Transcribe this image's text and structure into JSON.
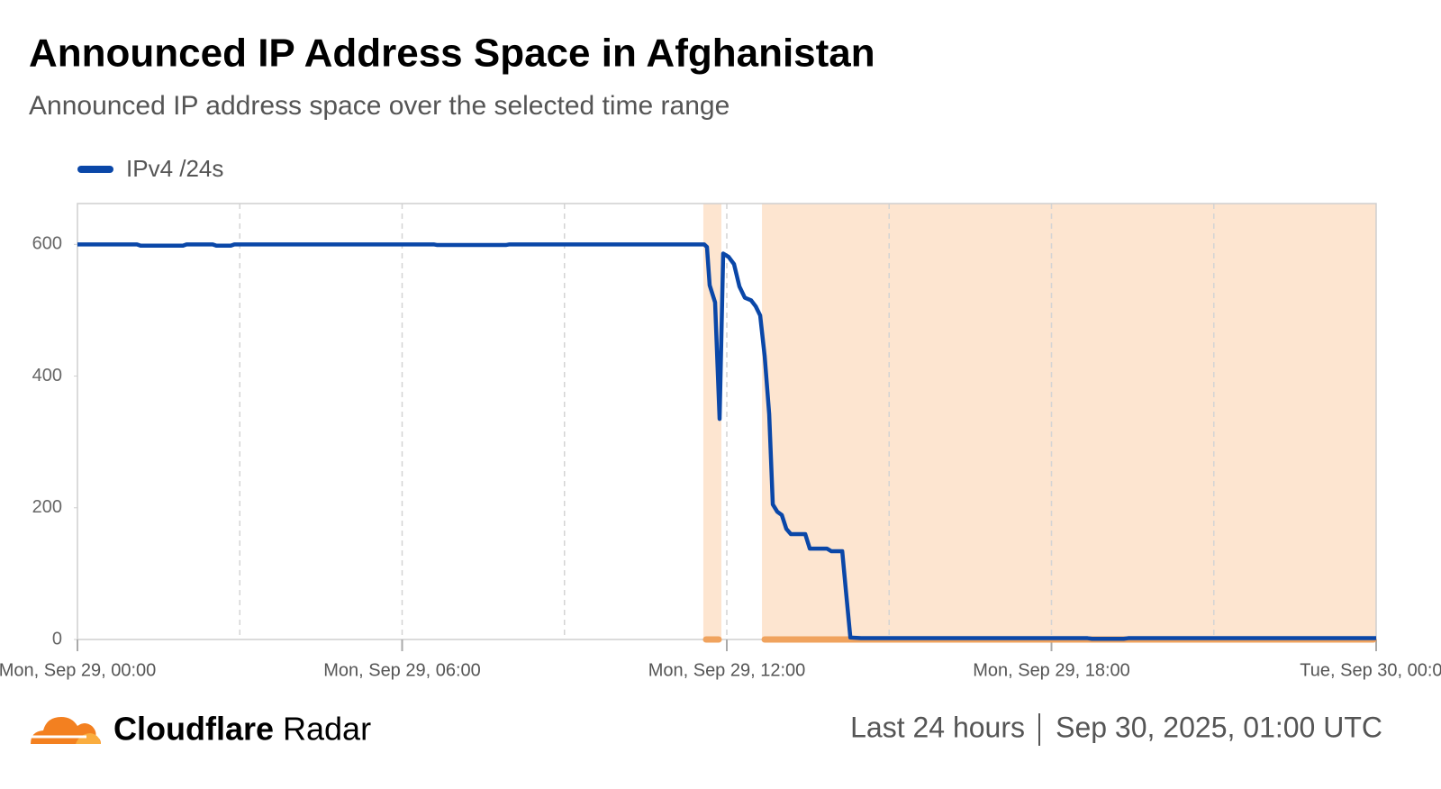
{
  "chart_data": {
    "type": "line",
    "title": "Announced IP Address Space in Afghanistan",
    "subtitle": "Announced IP address space over the selected time range",
    "x": [
      "2025-09-29T00:00",
      "2025-09-29T01:06",
      "2025-09-29T01:10",
      "2025-09-29T01:57",
      "2025-09-29T02:01",
      "2025-09-29T02:30",
      "2025-09-29T02:34",
      "2025-09-29T02:50",
      "2025-09-29T02:54",
      "2025-09-29T06:35",
      "2025-09-29T06:39",
      "2025-09-29T07:55",
      "2025-09-29T07:59",
      "2025-09-29T11:35",
      "2025-09-29T11:38",
      "2025-09-29T11:41",
      "2025-09-29T11:47",
      "2025-09-29T11:52",
      "2025-09-29T11:56",
      "2025-09-29T12:02",
      "2025-09-29T12:08",
      "2025-09-29T12:14",
      "2025-09-29T12:20",
      "2025-09-29T12:27",
      "2025-09-29T12:32",
      "2025-09-29T12:37",
      "2025-09-29T12:42",
      "2025-09-29T12:47",
      "2025-09-29T12:51",
      "2025-09-29T12:56",
      "2025-09-29T13:01",
      "2025-09-29T13:06",
      "2025-09-29T13:11",
      "2025-09-29T13:27",
      "2025-09-29T13:32",
      "2025-09-29T13:51",
      "2025-09-29T13:56",
      "2025-09-29T14:08",
      "2025-09-29T14:12",
      "2025-09-29T14:17",
      "2025-09-29T14:29",
      "2025-09-29T18:40",
      "2025-09-29T18:45",
      "2025-09-29T19:20",
      "2025-09-29T19:25",
      "2025-09-30T00:00"
    ],
    "series": [
      {
        "name": "IPv4 /24s",
        "color": "#0a47a8",
        "values": [
          600,
          600,
          598,
          598,
          600,
          600,
          598,
          598,
          600,
          600,
          599,
          599,
          600,
          600,
          596,
          538,
          512,
          335,
          586,
          581,
          570,
          536,
          519,
          515,
          506,
          492,
          430,
          342,
          205,
          194,
          189,
          168,
          160,
          160,
          138,
          138,
          134,
          134,
          75,
          3,
          2,
          2,
          1,
          1,
          2,
          2
        ]
      }
    ],
    "highlight_ranges": [
      {
        "start": "2025-09-29T11:34",
        "end": "2025-09-29T11:54"
      },
      {
        "start": "2025-09-29T12:39",
        "end": "2025-09-30T00:00"
      }
    ],
    "highlight_color": "#fde5d0",
    "highlight_marker_color": "#f0a35e",
    "xlim": [
      "2025-09-29T00:00",
      "2025-09-30T00:00"
    ],
    "xticks": [
      {
        "value": "2025-09-29T00:00",
        "label": "Mon, Sep 29, 00:00"
      },
      {
        "value": "2025-09-29T06:00",
        "label": "Mon, Sep 29, 06:00"
      },
      {
        "value": "2025-09-29T12:00",
        "label": "Mon, Sep 29, 12:00"
      },
      {
        "value": "2025-09-29T18:00",
        "label": "Mon, Sep 29, 18:00"
      },
      {
        "value": "2025-09-30T00:00",
        "label": "Tue, Sep 30, 00:00"
      }
    ],
    "xgrid": [
      "2025-09-29T03:00",
      "2025-09-29T06:00",
      "2025-09-29T09:00",
      "2025-09-29T12:00",
      "2025-09-29T15:00",
      "2025-09-29T18:00",
      "2025-09-29T21:00"
    ],
    "ylim": [
      0,
      662
    ],
    "yticks": [
      0,
      200,
      400,
      600
    ]
  },
  "footer": {
    "brand": "Cloudflare",
    "product": "Radar",
    "range": "Last 24 hours",
    "timestamp": "Sep 30, 2025, 01:00 UTC"
  }
}
